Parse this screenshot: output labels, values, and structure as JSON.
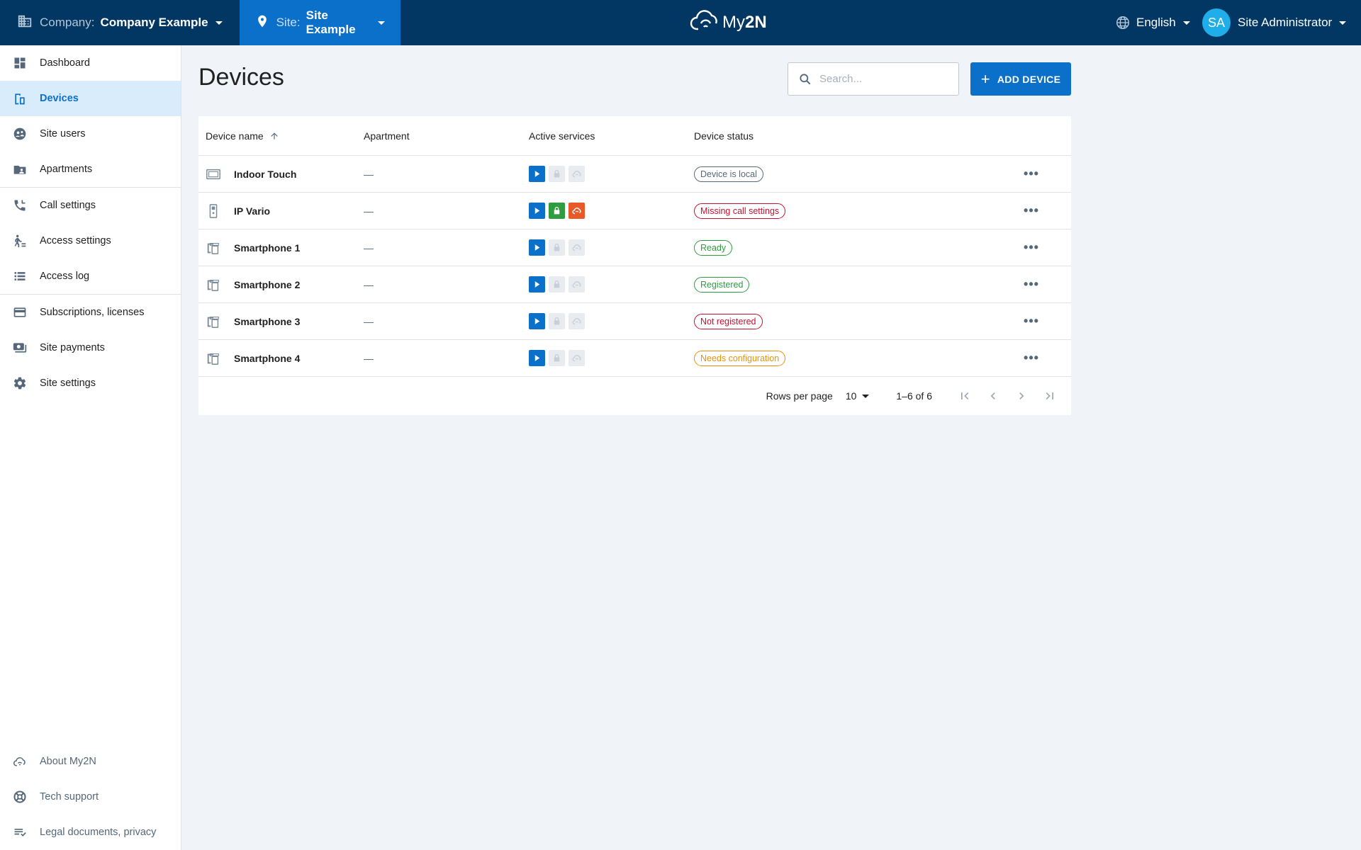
{
  "header": {
    "company_label": "Company:",
    "company_value": "Company Example",
    "site_label": "Site:",
    "site_value": "Site Example",
    "logo_my": "My",
    "logo_2n": "2N",
    "language": "English",
    "user_initials": "SA",
    "user_name": "Site Administrator"
  },
  "sidebar": {
    "items": [
      {
        "label": "Dashboard",
        "icon": "dashboard-icon"
      },
      {
        "label": "Devices",
        "icon": "devices-icon",
        "active": true
      },
      {
        "label": "Site users",
        "icon": "site-users-icon"
      },
      {
        "label": "Apartments",
        "icon": "apartments-icon"
      },
      {
        "label": "Call settings",
        "icon": "phone-icon"
      },
      {
        "label": "Access settings",
        "icon": "access-icon"
      },
      {
        "label": "Access log",
        "icon": "list-icon"
      },
      {
        "label": "Subscriptions, licenses",
        "icon": "credit-card-icon"
      },
      {
        "label": "Site payments",
        "icon": "payments-icon"
      },
      {
        "label": "Site settings",
        "icon": "gear-icon"
      }
    ],
    "bottom": [
      {
        "label": "About My2N",
        "icon": "cloud-icon"
      },
      {
        "label": "Tech support",
        "icon": "lifebuoy-icon"
      },
      {
        "label": "Legal documents, privacy",
        "icon": "legal-icon"
      }
    ]
  },
  "main": {
    "title": "Devices",
    "search_placeholder": "Search...",
    "add_button": "ADD DEVICE"
  },
  "table": {
    "headers": {
      "name": "Device name",
      "apartment": "Apartment",
      "services": "Active services",
      "status": "Device status"
    },
    "rows": [
      {
        "name": "Indoor Touch",
        "type": "indoor",
        "apartment": "—",
        "services": [
          true,
          false,
          false
        ],
        "status": "Device is local",
        "status_color": "#55677a"
      },
      {
        "name": "IP Vario",
        "type": "intercom",
        "apartment": "—",
        "services": [
          true,
          true,
          true
        ],
        "status": "Missing call settings",
        "status_color": "#c4112f"
      },
      {
        "name": "Smartphone 1",
        "type": "phone",
        "apartment": "—",
        "services": [
          true,
          false,
          false
        ],
        "status": "Ready",
        "status_color": "#2e9c3f"
      },
      {
        "name": "Smartphone 2",
        "type": "phone",
        "apartment": "—",
        "services": [
          true,
          false,
          false
        ],
        "status": "Registered",
        "status_color": "#2e9c3f"
      },
      {
        "name": "Smartphone 3",
        "type": "phone",
        "apartment": "—",
        "services": [
          true,
          false,
          false
        ],
        "status": "Not registered",
        "status_color": "#c4112f"
      },
      {
        "name": "Smartphone 4",
        "type": "phone",
        "apartment": "—",
        "services": [
          true,
          false,
          false
        ],
        "status": "Needs configuration",
        "status_color": "#e8920c"
      }
    ],
    "more_label": "•••"
  },
  "pager": {
    "rows_per_page_label": "Rows per page",
    "rows_per_page": "10",
    "range": "1–6 of 6"
  },
  "colors": {
    "header_bg": "#013762",
    "site_bg": "#0b70c9",
    "accent": "#0b70c9",
    "service_call": "#0b70c9",
    "service_access": "#2e9c3f",
    "service_cloud": "#e8592a"
  }
}
